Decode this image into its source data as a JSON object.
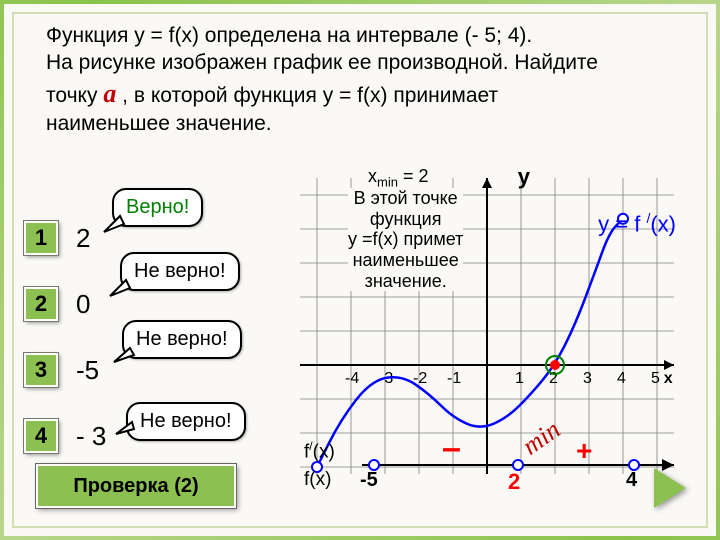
{
  "problem": {
    "line1": "Функция  y = f(x)  определена  на интервале (- 5; 4).",
    "line2": "На рисунке изображен график ее производной. Найдите",
    "line3_pre": "точку ",
    "var": "a",
    "line3_post": " , в которой функция y = f(x) принимает",
    "line4": "наименьшее значение."
  },
  "answers": [
    {
      "num": "1",
      "val": "2"
    },
    {
      "num": "2",
      "val": "0"
    },
    {
      "num": "3",
      "val": "-5"
    },
    {
      "num": "4",
      "val": "- 3"
    }
  ],
  "bubbles": {
    "correct": "Верно!",
    "wrong": "Не верно!"
  },
  "check": "Проверка (2)",
  "chart": {
    "eq": "y = f /(x)",
    "xmin_text": "xmin = 2",
    "explain": "В этой точке\nфункция\ny =f(x) примет\nнаименьшее\nзначение.",
    "y_label": "y",
    "x_label": "x",
    "x_ticks": [
      -4,
      -3,
      -2,
      -1,
      1,
      2,
      3,
      4,
      5
    ],
    "x_range": [
      -5.5,
      5.5
    ],
    "y_range": [
      -3.5,
      5.5
    ],
    "cell": 34,
    "curve_pts": [
      [
        -5,
        -3
      ],
      [
        -4.3,
        -1.6
      ],
      [
        -3.4,
        -0.45
      ],
      [
        -2.5,
        -0.3
      ],
      [
        -1.7,
        -0.85
      ],
      [
        -1,
        -1.55
      ],
      [
        -0.2,
        -1.9
      ],
      [
        0.6,
        -1.55
      ],
      [
        1.3,
        -0.85
      ],
      [
        2,
        0
      ],
      [
        2.6,
        1.2
      ],
      [
        3.2,
        2.8
      ],
      [
        3.6,
        3.9
      ],
      [
        4,
        4.3
      ]
    ],
    "endpoints": [
      [
        -5,
        -3
      ],
      [
        4,
        4.3
      ]
    ],
    "zero_pt": [
      2,
      0
    ],
    "colors": {
      "grid": "#808080",
      "axis": "#000000",
      "curve": "#0000ff",
      "zero": "#ff0000",
      "ring": "#008000"
    },
    "sign_row": {
      "fprime": "f/(x)",
      "f": "f(x)",
      "vals": [
        "-5",
        "2",
        "4"
      ],
      "minus": "–",
      "plus": "+",
      "min": "min"
    }
  }
}
